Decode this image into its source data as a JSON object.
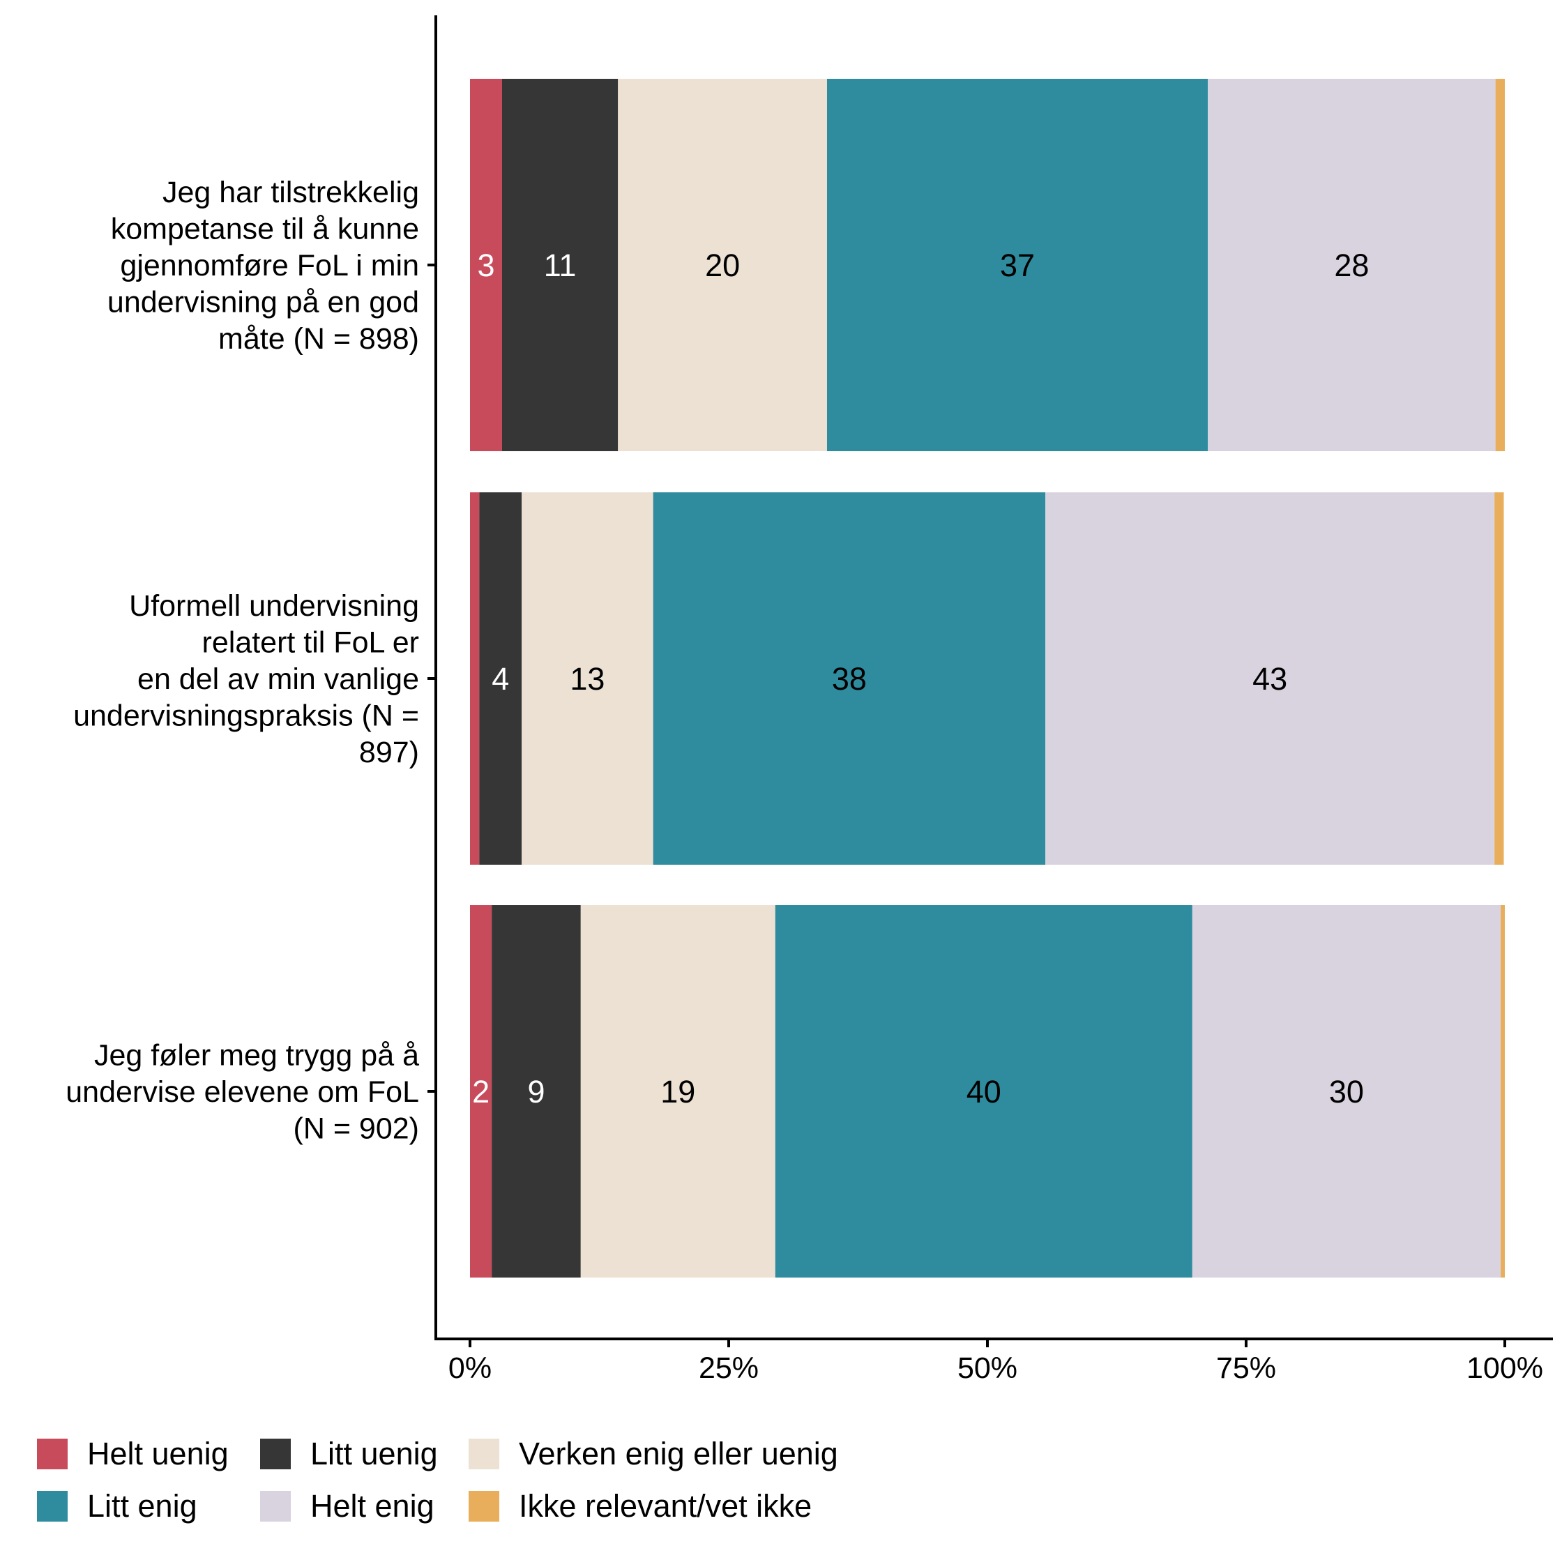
{
  "chart_data": {
    "type": "bar",
    "orientation": "horizontal",
    "stacked": true,
    "title": "",
    "xlabel": "",
    "ylabel": "",
    "xlim": [
      0,
      100
    ],
    "x_ticks": [
      0,
      25,
      50,
      75,
      100
    ],
    "x_tick_labels": [
      "0%",
      "25%",
      "50%",
      "75%",
      "100%"
    ],
    "grid": false,
    "legend_position": "bottom",
    "categories": [
      {
        "lines": [
          "Jeg har tilstrekkelig",
          "kompetanse til å kunne",
          "gjennomføre FoL i min",
          "undervisning på en god",
          "måte (N = 898)"
        ]
      },
      {
        "lines": [
          "Uformell undervisning",
          "relatert til FoL er",
          "en del av min vanlige",
          "undervisningspraksis (N =",
          "897)"
        ]
      },
      {
        "lines": [
          "Jeg føler meg trygg på å",
          "undervise elevene om FoL",
          "(N = 902)"
        ]
      }
    ],
    "series": [
      {
        "name": "Helt uenig",
        "color": "#c84b5c",
        "label_color": "#ffffff",
        "values": [
          3.1,
          0.9,
          2.1
        ],
        "labels": [
          "3",
          "",
          "2"
        ]
      },
      {
        "name": "Litt uenig",
        "color": "#363636",
        "label_color": "#ffffff",
        "values": [
          11.2,
          4.1,
          8.6
        ],
        "labels": [
          "11",
          "4",
          "9"
        ]
      },
      {
        "name": "Verken enig eller uenig",
        "color": "#ece1d2",
        "label_color": "#000000",
        "values": [
          20.2,
          12.7,
          18.8
        ],
        "labels": [
          "20",
          "13",
          "19"
        ]
      },
      {
        "name": "Litt enig",
        "color": "#2e8c9e",
        "label_color": "#000000",
        "values": [
          36.8,
          37.9,
          40.3
        ],
        "labels": [
          "37",
          "38",
          "40"
        ]
      },
      {
        "name": "Helt enig",
        "color": "#d9d2df",
        "label_color": "#000000",
        "values": [
          27.8,
          43.4,
          29.8
        ],
        "labels": [
          "28",
          "43",
          "30"
        ]
      },
      {
        "name": "Ikke relevant/vet ikke",
        "color": "#e8ae5c",
        "label_color": "#000000",
        "values": [
          0.9,
          0.9,
          0.4
        ],
        "labels": [
          "",
          "",
          ""
        ]
      }
    ]
  }
}
